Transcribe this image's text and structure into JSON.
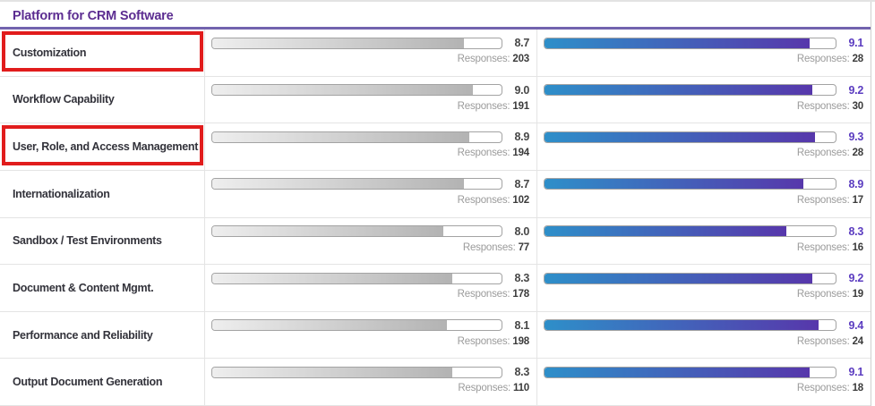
{
  "header": {
    "title": "Platform for CRM Software"
  },
  "responses_label": "Responses:",
  "rows": [
    {
      "label": "Customization",
      "highlighted": true,
      "left": {
        "score": "8.7",
        "responses": "203"
      },
      "right": {
        "score": "9.1",
        "responses": "28"
      }
    },
    {
      "label": "Workflow Capability",
      "highlighted": false,
      "left": {
        "score": "9.0",
        "responses": "191"
      },
      "right": {
        "score": "9.2",
        "responses": "30"
      }
    },
    {
      "label": "User, Role, and Access Management",
      "highlighted": true,
      "left": {
        "score": "8.9",
        "responses": "194"
      },
      "right": {
        "score": "9.3",
        "responses": "28"
      }
    },
    {
      "label": "Internationalization",
      "highlighted": false,
      "left": {
        "score": "8.7",
        "responses": "102"
      },
      "right": {
        "score": "8.9",
        "responses": "17"
      }
    },
    {
      "label": "Sandbox / Test Environments",
      "highlighted": false,
      "left": {
        "score": "8.0",
        "responses": "77"
      },
      "right": {
        "score": "8.3",
        "responses": "16"
      }
    },
    {
      "label": "Document & Content Mgmt.",
      "highlighted": false,
      "left": {
        "score": "8.3",
        "responses": "178"
      },
      "right": {
        "score": "9.2",
        "responses": "19"
      }
    },
    {
      "label": "Performance and Reliability",
      "highlighted": false,
      "left": {
        "score": "8.1",
        "responses": "198"
      },
      "right": {
        "score": "9.4",
        "responses": "24"
      }
    },
    {
      "label": "Output Document Generation",
      "highlighted": false,
      "left": {
        "score": "8.3",
        "responses": "110"
      },
      "right": {
        "score": "9.1",
        "responses": "18"
      }
    }
  ],
  "colors": {
    "title_purple": "#5c2d91",
    "underline_purple": "#7263ae",
    "score_purple": "#5b3cc0",
    "bar_gradient_start": "#2e8fc9",
    "bar_gradient_end": "#5737ab",
    "gray_bar_start": "#eeeeee",
    "gray_bar_end": "#b3b3b3",
    "highlight_red": "#e11c1c"
  },
  "chart_data": {
    "type": "bar",
    "title": "Platform for CRM Software",
    "categories": [
      "Customization",
      "Workflow Capability",
      "User, Role, and Access Management",
      "Internationalization",
      "Sandbox / Test Environments",
      "Document & Content Mgmt.",
      "Performance and Reliability",
      "Output Document Generation"
    ],
    "series": [
      {
        "name": "left-product-rating",
        "values": [
          8.7,
          9.0,
          8.9,
          8.7,
          8.0,
          8.3,
          8.1,
          8.3
        ],
        "responses": [
          203,
          191,
          194,
          102,
          77,
          178,
          198,
          110
        ]
      },
      {
        "name": "right-product-rating",
        "values": [
          9.1,
          9.2,
          9.3,
          8.9,
          8.3,
          9.2,
          9.4,
          9.1
        ],
        "responses": [
          28,
          30,
          28,
          17,
          16,
          19,
          24,
          18
        ]
      }
    ],
    "value_range": [
      0,
      10
    ],
    "annotations": [
      "red highlight box on row 1 (Customization)",
      "red highlight box on row 3 (User, Role, and Access Management)"
    ]
  }
}
